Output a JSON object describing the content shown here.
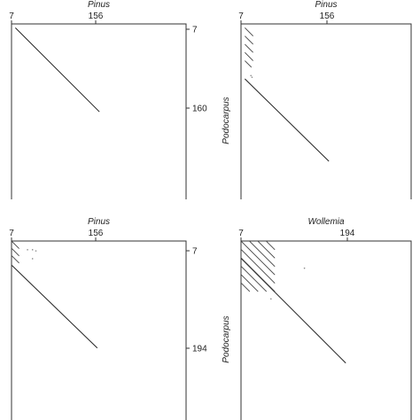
{
  "chart_data": [
    {
      "type": "dot plot",
      "title": "Pinus",
      "ylabel": "",
      "x_ticks": [
        "7",
        "156"
      ],
      "y_ticks": [
        "7",
        "160"
      ],
      "main_diagonal": {
        "x": [
          7,
          160
        ],
        "y": [
          7,
          160
        ]
      },
      "repeat_segments": [],
      "scatter_dots": []
    },
    {
      "type": "dot plot",
      "title": "Pinus",
      "ylabel": "Podocarpus",
      "x_ticks": [
        "7",
        "156"
      ],
      "y_ticks": [],
      "main_diagonal": {
        "x": [
          7,
          160
        ],
        "y": [
          100,
          250
        ]
      },
      "repeat_segments": [
        {
          "x": [
            7,
            22
          ],
          "y": [
            7,
            22
          ]
        },
        {
          "x": [
            7,
            22
          ],
          "y": [
            22,
            37
          ]
        },
        {
          "x": [
            7,
            22
          ],
          "y": [
            37,
            52
          ]
        },
        {
          "x": [
            7,
            22
          ],
          "y": [
            52,
            67
          ]
        },
        {
          "x": [
            7,
            19
          ],
          "y": [
            67,
            79
          ]
        }
      ],
      "scatter_dots": [
        {
          "x": 18,
          "y": 94
        },
        {
          "x": 20,
          "y": 97
        }
      ]
    },
    {
      "type": "dot plot",
      "title": "Pinus",
      "ylabel": "",
      "x_ticks": [
        "7",
        "156"
      ],
      "y_ticks": [
        "7",
        "194"
      ],
      "main_diagonal": {
        "x": [
          7,
          160
        ],
        "y": [
          50,
          198
        ]
      },
      "repeat_segments": [
        {
          "x": [
            7,
            20
          ],
          "y": [
            7,
            20
          ]
        },
        {
          "x": [
            7,
            20
          ],
          "y": [
            20,
            33
          ]
        },
        {
          "x": [
            7,
            20
          ],
          "y": [
            33,
            46
          ]
        }
      ],
      "scatter_dots": [
        {
          "x": 35,
          "y": 22
        },
        {
          "x": 44,
          "y": 22
        },
        {
          "x": 44,
          "y": 38
        },
        {
          "x": 50,
          "y": 24
        }
      ]
    },
    {
      "type": "dot plot",
      "title": "Wollemia",
      "ylabel": "Podocarpus",
      "x_ticks": [
        "7",
        "194"
      ],
      "y_ticks": [],
      "main_diagonal": {
        "x": [
          7,
          194
        ],
        "y": [
          38,
          225
        ]
      },
      "repeat_segments": [
        {
          "x": [
            7,
            67
          ],
          "y": [
            7,
            67
          ]
        },
        {
          "x": [
            7,
            67
          ],
          "y": [
            22,
            82
          ]
        },
        {
          "x": [
            7,
            67
          ],
          "y": [
            37,
            97
          ]
        },
        {
          "x": [
            7,
            52
          ],
          "y": [
            52,
            97
          ]
        },
        {
          "x": [
            7,
            37
          ],
          "y": [
            67,
            97
          ]
        },
        {
          "x": [
            7,
            22
          ],
          "y": [
            82,
            97
          ]
        },
        {
          "x": [
            22,
            67
          ],
          "y": [
            7,
            52
          ]
        },
        {
          "x": [
            37,
            67
          ],
          "y": [
            7,
            37
          ]
        },
        {
          "x": [
            52,
            67
          ],
          "y": [
            7,
            22
          ]
        }
      ],
      "scatter_dots": [
        {
          "x": 60,
          "y": 110
        },
        {
          "x": 120,
          "y": 55
        }
      ]
    }
  ]
}
